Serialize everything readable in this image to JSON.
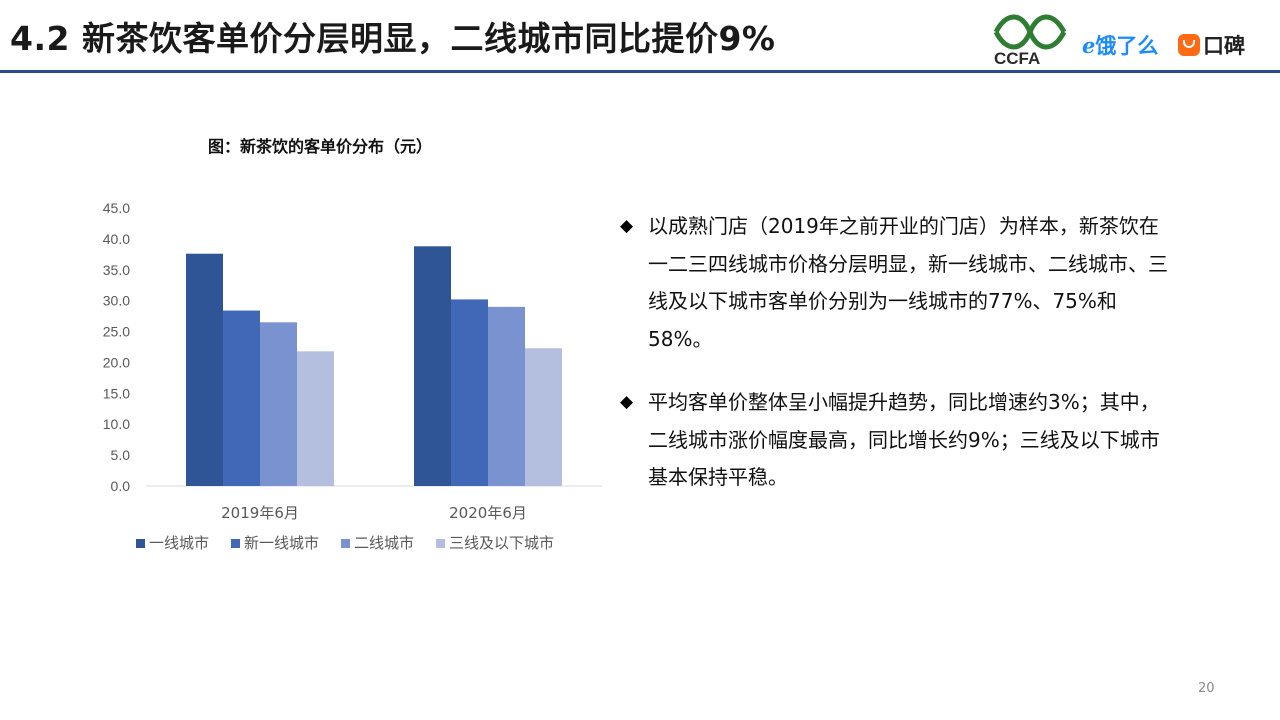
{
  "header": {
    "title": "4.2 新茶饮客单价分层明显，二线城市同比提价9%",
    "logos": {
      "ccfa": "CCFA",
      "eleme": "饿了么",
      "koubei": "口碑"
    }
  },
  "chart_title": "图：新茶饮的客单价分布（元）",
  "chart_data": {
    "type": "bar",
    "categories": [
      "2019年6月",
      "2020年6月"
    ],
    "series": [
      {
        "name": "一线城市",
        "color": "#2f5597",
        "values": [
          37.6,
          38.8
        ]
      },
      {
        "name": "新一线城市",
        "color": "#4068b7",
        "values": [
          28.4,
          30.2
        ]
      },
      {
        "name": "二线城市",
        "color": "#7a92cf",
        "values": [
          26.5,
          29.0
        ]
      },
      {
        "name": "三线及以下城市",
        "color": "#b4bfe0",
        "values": [
          21.8,
          22.3
        ]
      }
    ],
    "ylim": [
      0,
      45
    ],
    "yticks": [
      "0.0",
      "5.0",
      "10.0",
      "15.0",
      "20.0",
      "25.0",
      "30.0",
      "35.0",
      "40.0",
      "45.0"
    ],
    "legend_position": "bottom",
    "grid": false,
    "xlabel": "",
    "ylabel": ""
  },
  "bullets": [
    "以成熟门店（2019年之前开业的门店）为样本，新茶饮在一二三四线城市价格分层明显，新一线城市、二线城市、三线及以下城市客单价分别为一线城市的77%、75%和58%。",
    "平均客单价整体呈小幅提升趋势，同比增速约3%；其中，二线城市涨价幅度最高，同比增长约9%；三线及以下城市基本保持平稳。"
  ],
  "bullet_symbol": "◆",
  "page_number": "20"
}
